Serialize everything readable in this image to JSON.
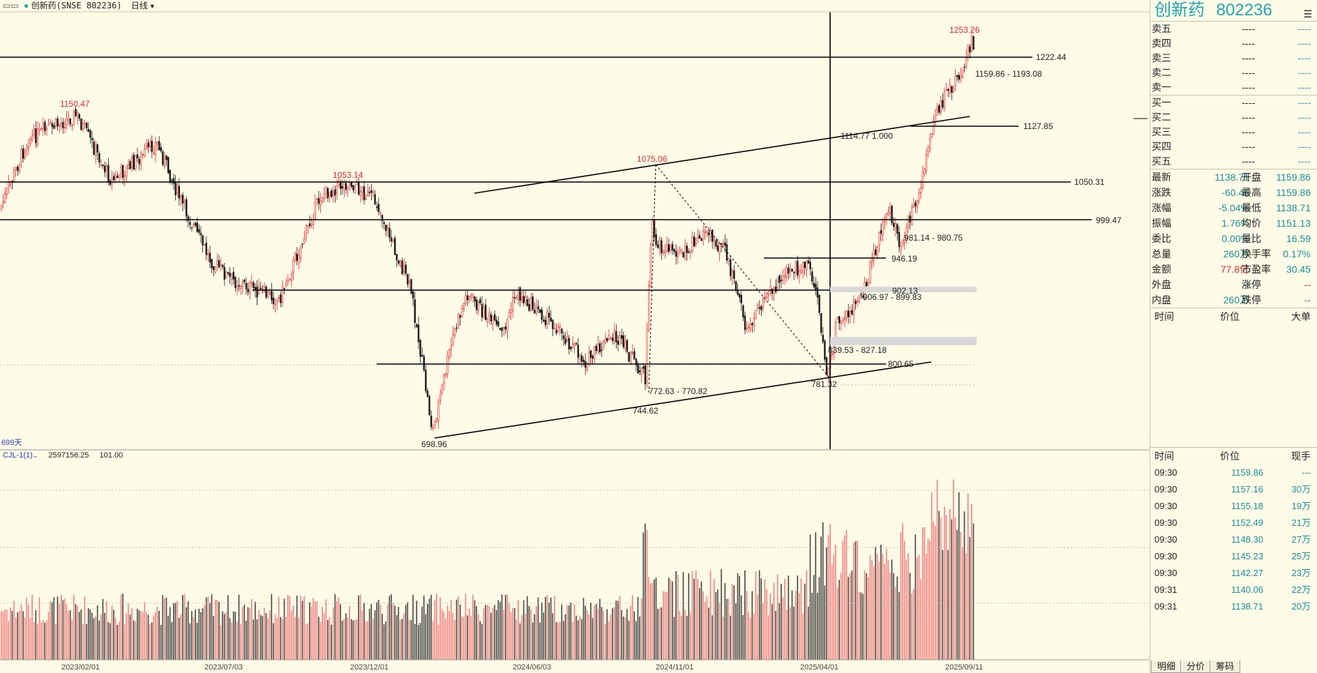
{
  "topbar": {
    "stock_label": "创新药(SNSE 802236)",
    "period": "日线"
  },
  "price_labels": {
    "high1": "1150.47",
    "high2": "1053.14",
    "high3": "1075.06",
    "top": "1253.26",
    "low1": "698.96",
    "low2": "744.62",
    "low3": "781.32"
  },
  "annotations": {
    "h1222": "1222.44",
    "range1": "1159.86 - 1193.08",
    "h1127": "1127.85",
    "trend": "1114.77  1.000",
    "h1050": "1050.31",
    "h999": "999.47",
    "range2": "981.14 - 980.75",
    "h946": "946.19",
    "h902": "902.13",
    "range3": "906.97 - 899.83",
    "range4": "839.53 - 827.18",
    "h800": "800.65",
    "range5": "772.63 - 770.82"
  },
  "days_label": "699天",
  "indicator": {
    "name": "CJL-1(1)",
    "value1": "2597156.25",
    "value2": "101.00"
  },
  "x_axis": [
    "2023/02/01",
    "2023/07/03",
    "2023/12/01",
    "2024/06/03",
    "2024/11/01",
    "2025/04/01",
    "2025/09/11"
  ],
  "side": {
    "name": "创新药",
    "code": "802236",
    "orderbook": [
      {
        "label": "卖五",
        "price": "----",
        "vol": "----"
      },
      {
        "label": "卖四",
        "price": "----",
        "vol": "----"
      },
      {
        "label": "卖三",
        "price": "----",
        "vol": "----"
      },
      {
        "label": "卖二",
        "price": "----",
        "vol": "----"
      },
      {
        "label": "卖一",
        "price": "----",
        "vol": "----"
      },
      {
        "label": "买一",
        "price": "----",
        "vol": "----"
      },
      {
        "label": "买二",
        "price": "----",
        "vol": "----"
      },
      {
        "label": "买三",
        "price": "----",
        "vol": "----"
      },
      {
        "label": "买四",
        "price": "----",
        "vol": "----"
      },
      {
        "label": "买五",
        "price": "----",
        "vol": "----"
      }
    ],
    "quote": [
      {
        "l1": "最新",
        "v1": "1138.71",
        "c1": "teal",
        "l2": "开盘",
        "v2": "1159.86",
        "c2": "teal"
      },
      {
        "l1": "涨跌",
        "v1": "-60.46",
        "c1": "teal",
        "l2": "最高",
        "v2": "1159.86",
        "c2": "teal"
      },
      {
        "l1": "涨幅",
        "v1": "-5.04%",
        "c1": "teal",
        "l2": "最低",
        "v2": "1138.71",
        "c2": "teal"
      },
      {
        "l1": "振幅",
        "v1": "1.76%",
        "c1": "teal",
        "l2": "均价",
        "v2": "1151.13",
        "c2": "teal"
      },
      {
        "l1": "委比",
        "v1": "0.00%",
        "c1": "teal",
        "l2": "量比",
        "v2": "16.59",
        "c2": "teal"
      },
      {
        "l1": "总量",
        "v1": "260万",
        "c1": "teal",
        "l2": "换手率",
        "v2": "0.17%",
        "c2": "teal"
      },
      {
        "l1": "金额",
        "v1": "77.8亿",
        "c1": "red",
        "l2": "市盈率",
        "v2": "30.45",
        "c2": "teal"
      },
      {
        "l1": "外盘",
        "v1": "--",
        "c1": "teal",
        "l2": "涨停",
        "v2": "--",
        "c2": "red"
      },
      {
        "l1": "内盘",
        "v1": "260万",
        "c1": "teal",
        "l2": "跌停",
        "v2": "--",
        "c2": "teal"
      }
    ],
    "trade_header": {
      "time": "时间",
      "price": "价位",
      "big": "大单"
    },
    "tick_header": {
      "time": "时间",
      "price": "价位",
      "vol": "现手"
    },
    "ticks": [
      {
        "t": "09:30",
        "p": "1159.86",
        "v": "---"
      },
      {
        "t": "09:30",
        "p": "1157.16",
        "v": "30万"
      },
      {
        "t": "09:30",
        "p": "1155.18",
        "v": "19万"
      },
      {
        "t": "09:30",
        "p": "1152.49",
        "v": "21万"
      },
      {
        "t": "09:30",
        "p": "1148.30",
        "v": "27万"
      },
      {
        "t": "09:30",
        "p": "1145.23",
        "v": "25万"
      },
      {
        "t": "09:30",
        "p": "1142.27",
        "v": "23万"
      },
      {
        "t": "09:31",
        "p": "1140.06",
        "v": "22万"
      },
      {
        "t": "09:31",
        "p": "1138.71",
        "v": "20万"
      }
    ],
    "tabs": [
      "明细",
      "分价",
      "筹码"
    ]
  }
}
